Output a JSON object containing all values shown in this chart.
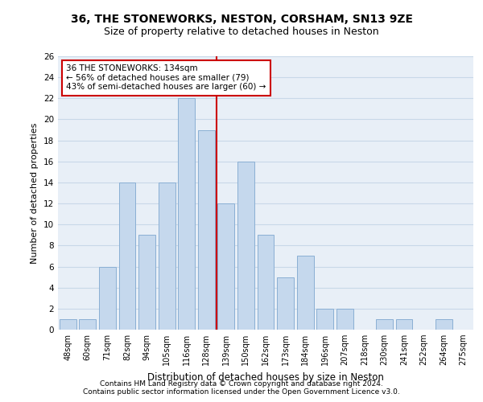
{
  "title": "36, THE STONEWORKS, NESTON, CORSHAM, SN13 9ZE",
  "subtitle": "Size of property relative to detached houses in Neston",
  "xlabel": "Distribution of detached houses by size in Neston",
  "ylabel": "Number of detached properties",
  "categories": [
    "48sqm",
    "60sqm",
    "71sqm",
    "82sqm",
    "94sqm",
    "105sqm",
    "116sqm",
    "128sqm",
    "139sqm",
    "150sqm",
    "162sqm",
    "173sqm",
    "184sqm",
    "196sqm",
    "207sqm",
    "218sqm",
    "230sqm",
    "241sqm",
    "252sqm",
    "264sqm",
    "275sqm"
  ],
  "values": [
    1,
    1,
    6,
    14,
    9,
    14,
    22,
    19,
    12,
    16,
    9,
    5,
    7,
    2,
    2,
    0,
    1,
    1,
    0,
    1,
    0
  ],
  "bar_color": "#c5d8ed",
  "bar_edge_color": "#8aafd4",
  "annotation_line1": "36 THE STONEWORKS: 134sqm",
  "annotation_line2": "← 56% of detached houses are smaller (79)",
  "annotation_line3": "43% of semi-detached houses are larger (60) →",
  "annotation_box_color": "#ffffff",
  "annotation_box_edge": "#cc0000",
  "vline_color": "#cc0000",
  "grid_color": "#c8d8e8",
  "background_color": "#e8eff7",
  "ylim": [
    0,
    26
  ],
  "yticks": [
    0,
    2,
    4,
    6,
    8,
    10,
    12,
    14,
    16,
    18,
    20,
    22,
    24,
    26
  ],
  "title_fontsize": 10,
  "subtitle_fontsize": 9,
  "footer1": "Contains HM Land Registry data © Crown copyright and database right 2024.",
  "footer2": "Contains public sector information licensed under the Open Government Licence v3.0."
}
